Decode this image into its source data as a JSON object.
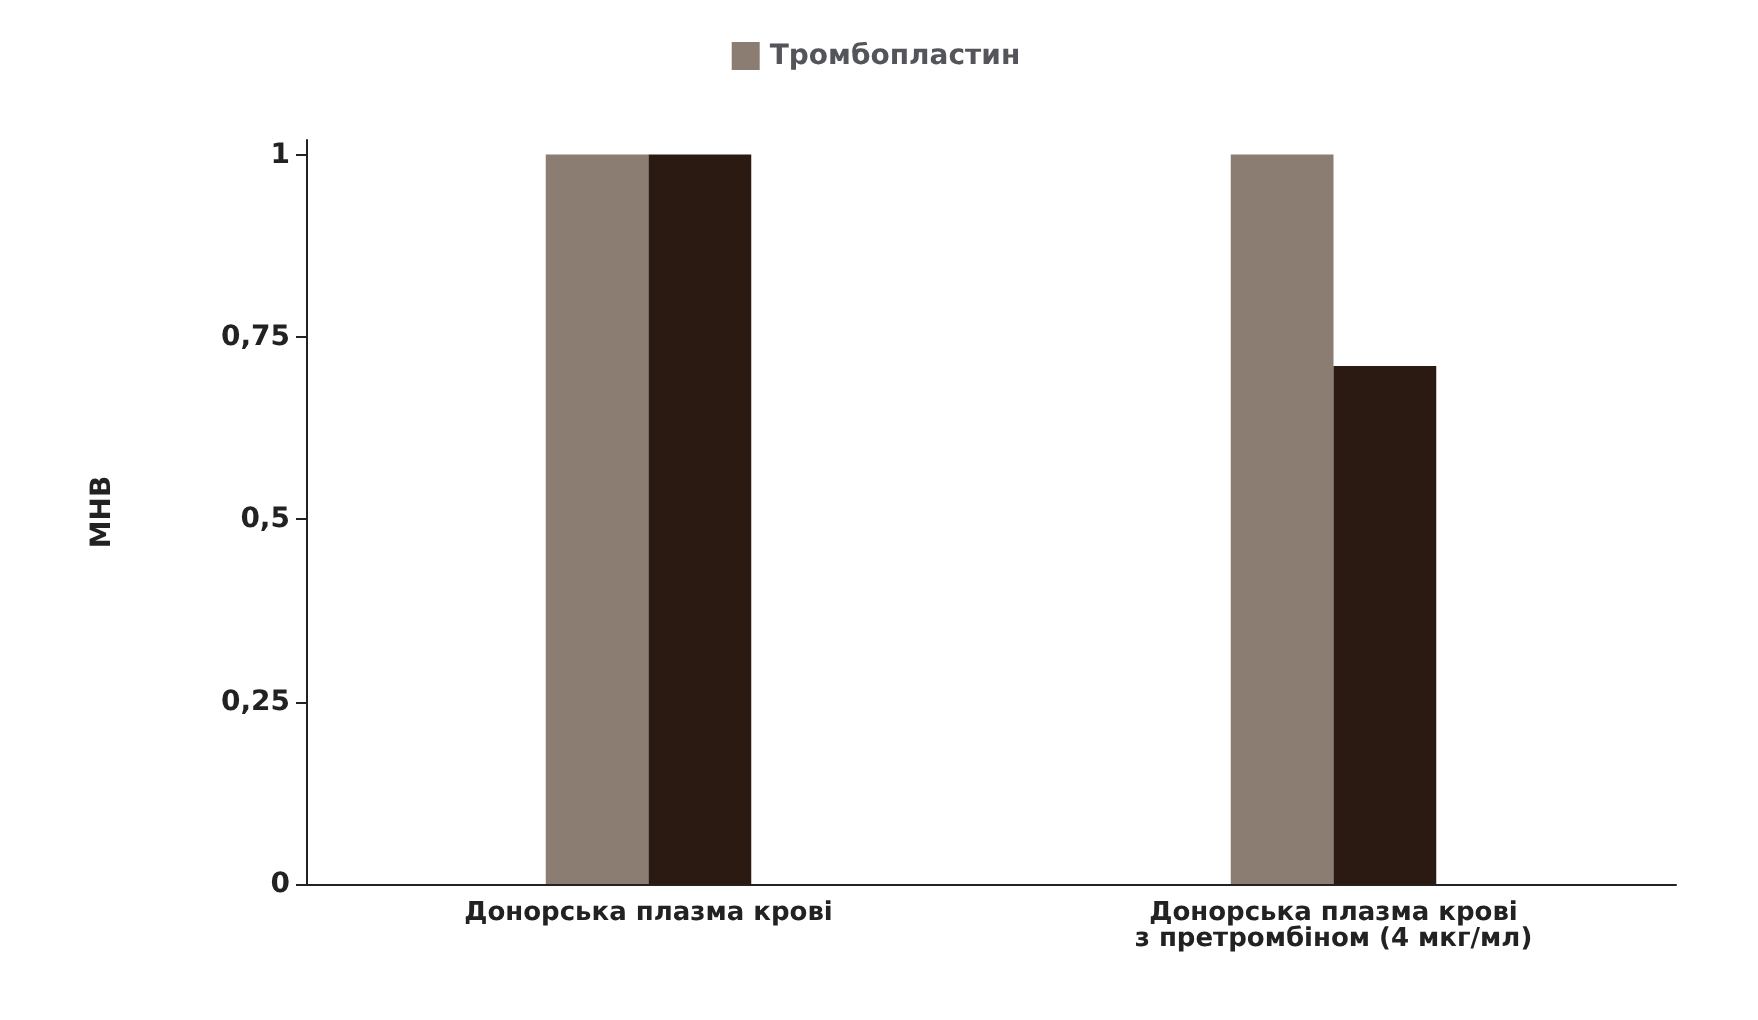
{
  "chart_data": {
    "type": "bar",
    "ylabel": "МНВ",
    "categories": [
      "Донорська плазма крові",
      "Донорська плазма крові\nз претромбіном (4 мкг/мл)"
    ],
    "series": [
      {
        "name": "Тромбопластин",
        "color": "#8c7d72",
        "values": [
          1,
          1
        ]
      },
      {
        "color": "#2a1a12",
        "values": [
          1,
          0.71
        ]
      }
    ],
    "ylim": [
      0,
      1.02
    ],
    "yticks": [
      0,
      {
        "value": 0.25,
        "label": "0,25"
      },
      {
        "value": 0.5,
        "label": "0,5"
      },
      {
        "value": 0.75,
        "label": "0,75"
      },
      1
    ],
    "grid": false,
    "legend": "top"
  }
}
